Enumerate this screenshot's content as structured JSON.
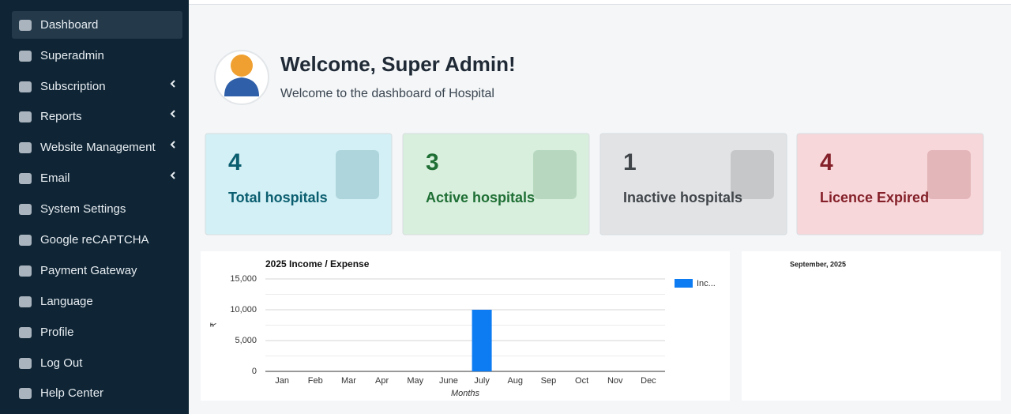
{
  "sidebar": {
    "items": [
      "Dashboard",
      "Superadmin",
      "Subscription",
      "Reports",
      "Website Management",
      "Email",
      "System Settings",
      "Google reCAPTCHA",
      "Payment Gateway",
      "Language",
      "Profile",
      "Log Out",
      "Help Center"
    ]
  },
  "header": {
    "title": "Welcome, Super Admin!",
    "subtitle": "Welcome to the dashboard of Hospital"
  },
  "cards": [
    {
      "value": 4,
      "label": "Total hospitals"
    },
    {
      "value": 3,
      "label": "Active hospitals"
    },
    {
      "value": 1,
      "label": "Inactive hospitals"
    },
    {
      "value": 4,
      "label": "Licence Expired"
    }
  ],
  "chart_data": {
    "type": "bar",
    "title": "2025 Income / Expense",
    "categories": [
      "Jan",
      "Feb",
      "Mar",
      "Apr",
      "May",
      "June",
      "July",
      "Aug",
      "Sep",
      "Oct",
      "Nov",
      "Dec"
    ],
    "series": [
      {
        "name": "Inc...",
        "color": "#0d7bf2",
        "values": [
          0,
          0,
          0,
          0,
          0,
          0,
          10000,
          0,
          0,
          0,
          0,
          0
        ]
      }
    ],
    "ylim": [
      0,
      15000
    ],
    "yticks": [
      0,
      {
        "value": 5000,
        "label": "5,000"
      },
      {
        "value": 10000,
        "label": "10,000"
      },
      {
        "value": 15000,
        "label": "15,000"
      }
    ],
    "minor_gridlines": [
      2500,
      7500,
      12500
    ],
    "ylabel": "₹",
    "xlabel": "Months",
    "legend": "right",
    "grid": true
  },
  "calendar": {
    "title": "September, 2025"
  }
}
